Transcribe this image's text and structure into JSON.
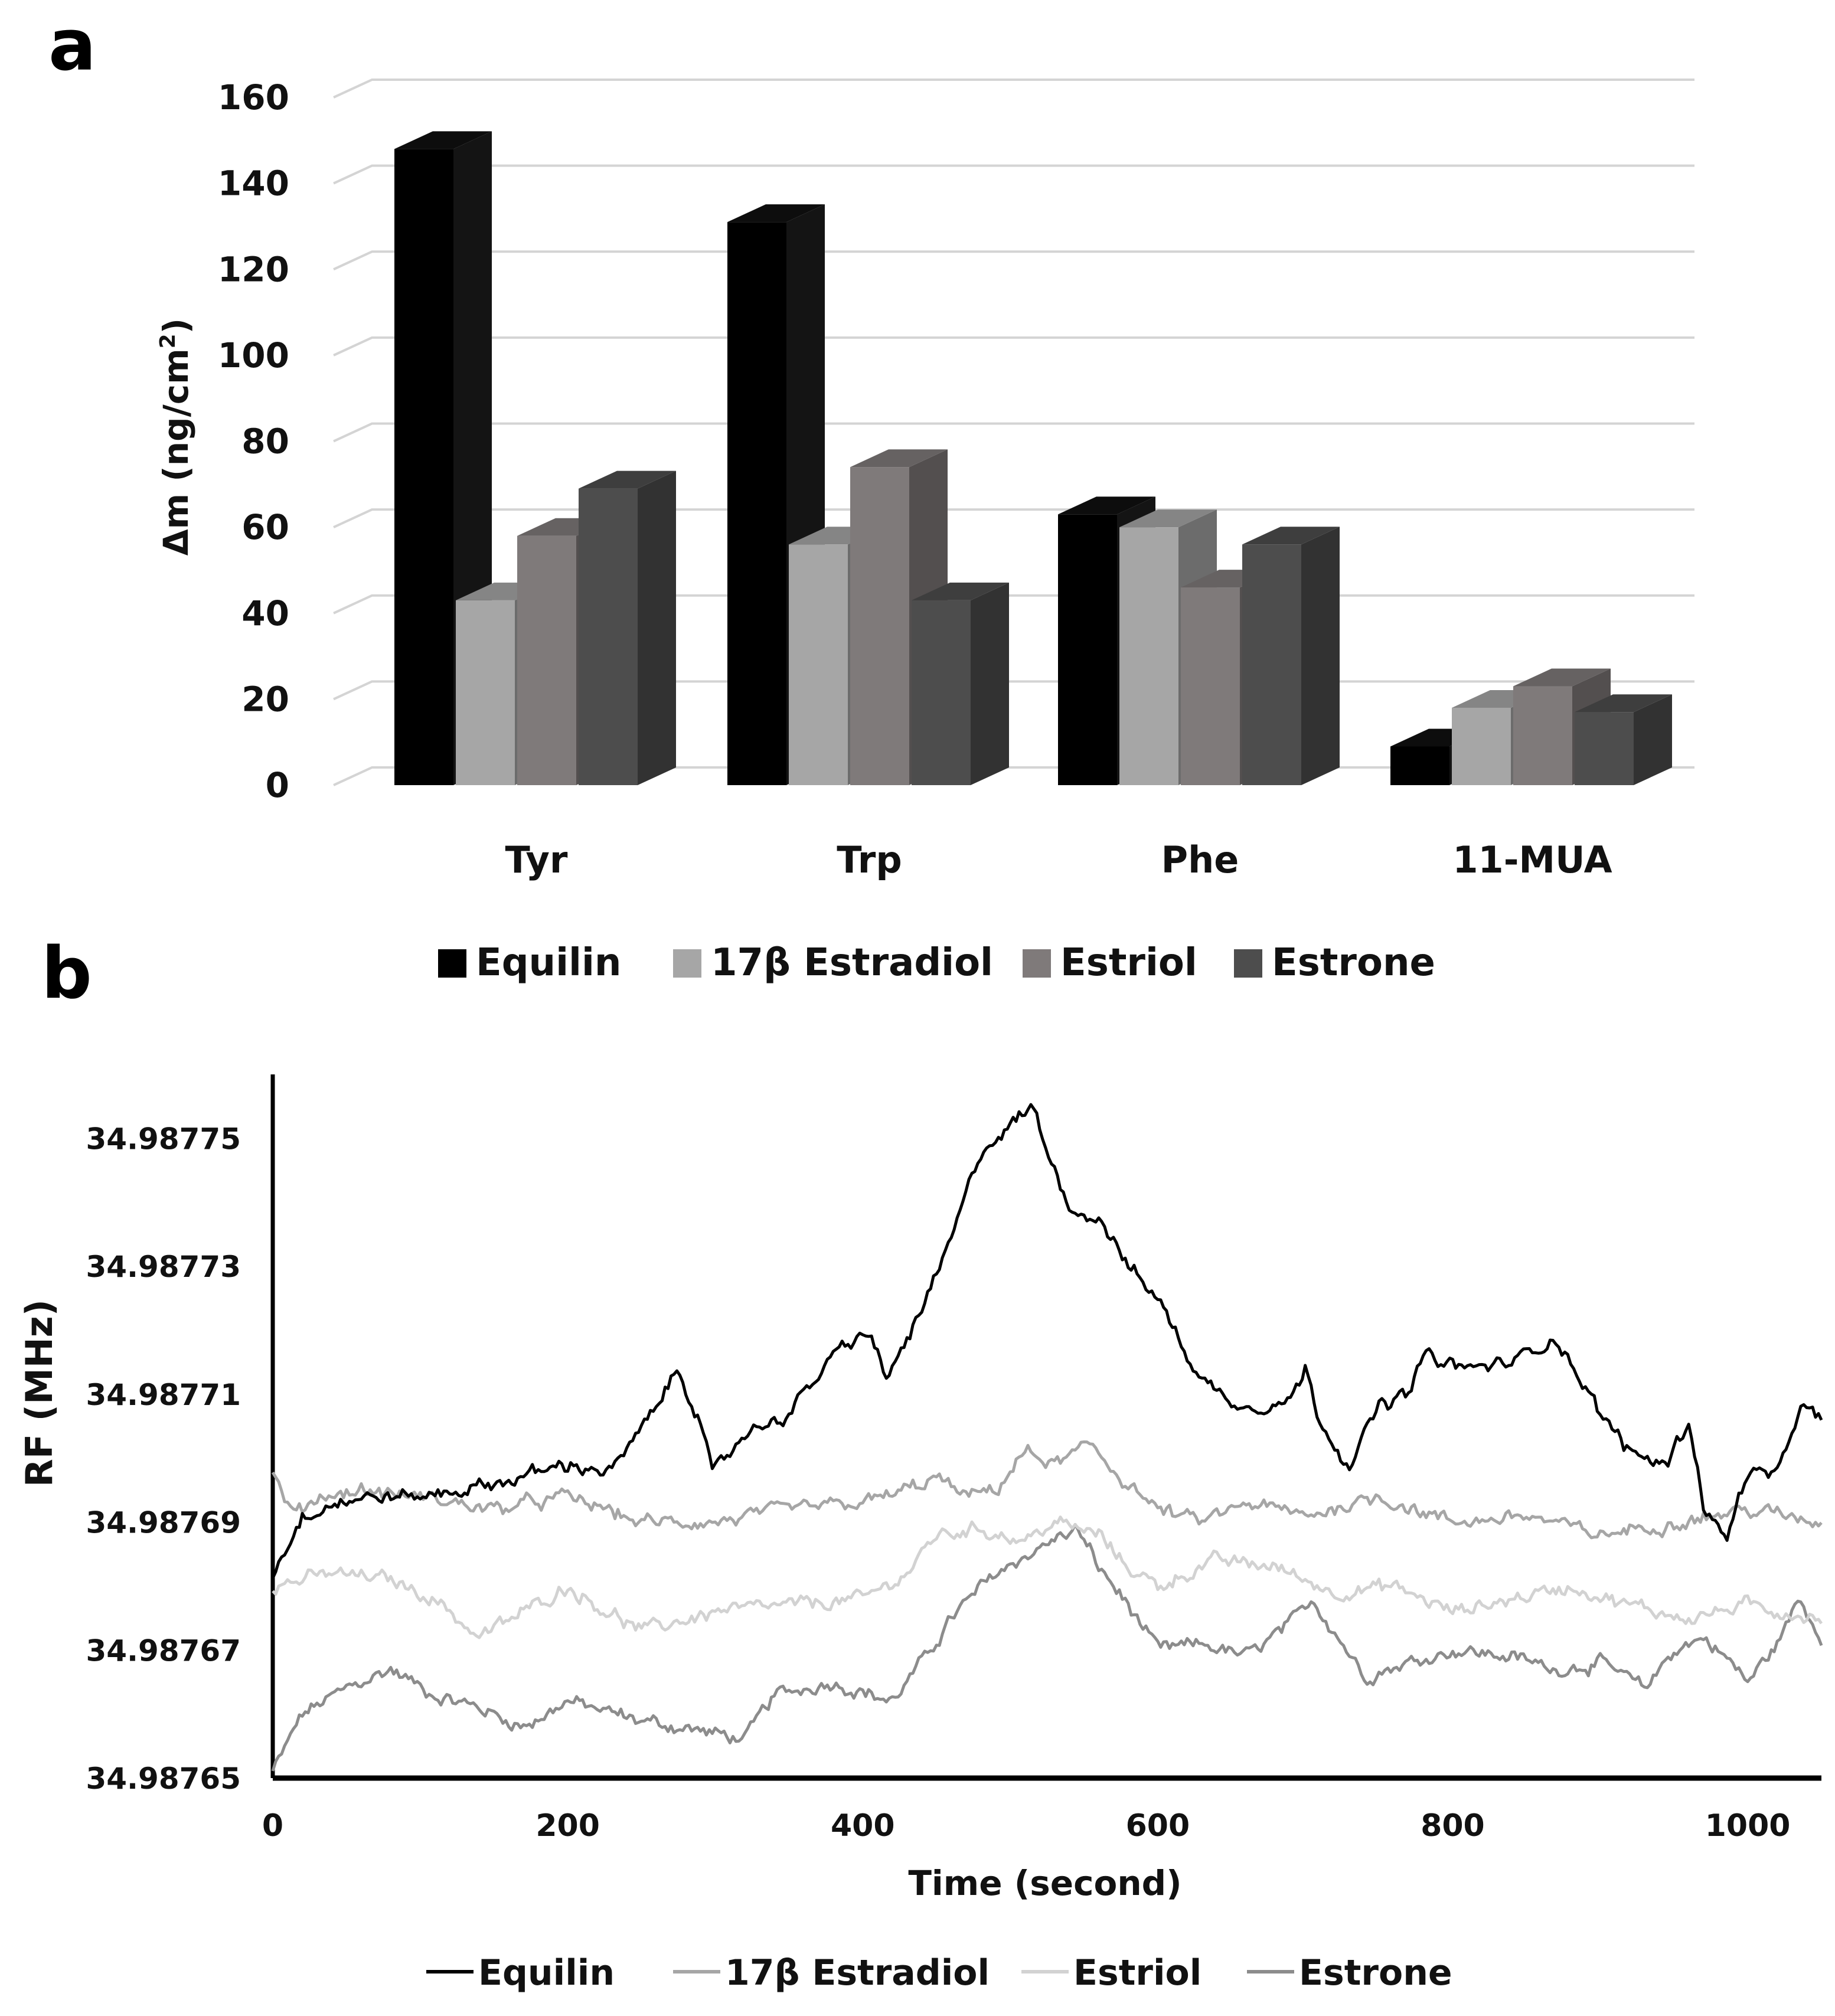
{
  "panels": {
    "a_label": "a",
    "b_label": "b"
  },
  "chart_data": [
    {
      "type": "bar",
      "panel": "a",
      "title": "",
      "categories": [
        "Tyr",
        "Trp",
        "Phe",
        "11-MUA"
      ],
      "series": [
        {
          "name": "Equilin",
          "color": "#000000",
          "values": [
            148,
            131,
            63,
            9
          ]
        },
        {
          "name": "17β Estradiol",
          "color": "#a6a6a6",
          "values": [
            43,
            56,
            60,
            18
          ]
        },
        {
          "name": "Estriol",
          "color": "#7f7a7a",
          "values": [
            58,
            74,
            46,
            23
          ]
        },
        {
          "name": "Estrone",
          "color": "#4d4d4d",
          "values": [
            69,
            43,
            56,
            17
          ]
        }
      ],
      "xlabel": "",
      "ylabel": "Δm (ng/cm",
      "ylabel_sup": "2",
      "ylabel_end": ")",
      "ylim": [
        0,
        160
      ],
      "yticks": [
        "0",
        "20",
        "40",
        "60",
        "80",
        "100",
        "120",
        "140",
        "160"
      ],
      "grid": true,
      "legend_position": "bottom"
    },
    {
      "type": "line",
      "panel": "b",
      "title": "",
      "xlabel": "Time (second)",
      "ylabel": "RF (MHz)",
      "xlim": [
        0,
        1050
      ],
      "ylim": [
        34.98765,
        34.98776
      ],
      "xticks": [
        "0",
        "200",
        "400",
        "600",
        "800",
        "1000"
      ],
      "yticks": [
        "34.98765",
        "34.98767",
        "34.98769",
        "34.98771",
        "34.98773",
        "34.98775"
      ],
      "grid": false,
      "legend_position": "bottom",
      "series": [
        {
          "name": "Equilin",
          "color": "#000000",
          "keypoints": [
            [
              0,
              34.987682
            ],
            [
              20,
              34.987691
            ],
            [
              40,
              34.987693
            ],
            [
              70,
              34.987694
            ],
            [
              100,
              34.987694
            ],
            [
              150,
              34.987696
            ],
            [
              200,
              34.987699
            ],
            [
              230,
              34.987698
            ],
            [
              255,
              34.987706
            ],
            [
              275,
              34.987714
            ],
            [
              290,
              34.987706
            ],
            [
              298,
              34.987697
            ],
            [
              320,
              34.987704
            ],
            [
              350,
              34.987707
            ],
            [
              380,
              34.987716
            ],
            [
              405,
              34.98772
            ],
            [
              415,
              34.987712
            ],
            [
              440,
              34.987723
            ],
            [
              460,
              34.987734
            ],
            [
              480,
              34.987748
            ],
            [
              500,
              34.987752
            ],
            [
              515,
              34.987755
            ],
            [
              530,
              34.987745
            ],
            [
              545,
              34.987738
            ],
            [
              560,
              34.987738
            ],
            [
              580,
              34.98773
            ],
            [
              600,
              34.987725
            ],
            [
              630,
              34.987712
            ],
            [
              660,
              34.987708
            ],
            [
              690,
              34.987709
            ],
            [
              700,
              34.987714
            ],
            [
              710,
              34.987706
            ],
            [
              730,
              34.987699
            ],
            [
              750,
              34.987708
            ],
            [
              770,
              34.98771
            ],
            [
              780,
              34.987716
            ],
            [
              810,
              34.987714
            ],
            [
              840,
              34.987715
            ],
            [
              870,
              34.987719
            ],
            [
              900,
              34.987707
            ],
            [
              920,
              34.987701
            ],
            [
              945,
              34.987699
            ],
            [
              960,
              34.987706
            ],
            [
              970,
              34.987693
            ],
            [
              985,
              34.987687
            ],
            [
              1000,
              34.987698
            ],
            [
              1020,
              34.987697
            ],
            [
              1035,
              34.987708
            ],
            [
              1050,
              34.987706
            ]
          ]
        },
        {
          "name": "17β Estradiol",
          "color": "#a6a6a6",
          "keypoints": [
            [
              0,
              34.987697
            ],
            [
              15,
              34.987691
            ],
            [
              30,
              34.987694
            ],
            [
              60,
              34.987695
            ],
            [
              100,
              34.987694
            ],
            [
              150,
              34.987692
            ],
            [
              200,
              34.987694
            ],
            [
              250,
              34.98769
            ],
            [
              300,
              34.98769
            ],
            [
              350,
              34.987692
            ],
            [
              400,
              34.987693
            ],
            [
              430,
              34.987695
            ],
            [
              450,
              34.987697
            ],
            [
              470,
              34.987694
            ],
            [
              490,
              34.987695
            ],
            [
              510,
              34.987701
            ],
            [
              530,
              34.987699
            ],
            [
              555,
              34.987702
            ],
            [
              575,
              34.987697
            ],
            [
              600,
              34.987692
            ],
            [
              630,
              34.98769
            ],
            [
              660,
              34.987693
            ],
            [
              700,
              34.987691
            ],
            [
              750,
              34.987694
            ],
            [
              800,
              34.98769
            ],
            [
              850,
              34.987691
            ],
            [
              900,
              34.987688
            ],
            [
              950,
              34.98769
            ],
            [
              1000,
              34.987692
            ],
            [
              1050,
              34.98769
            ]
          ]
        },
        {
          "name": "Estriol",
          "color": "#d2d2d2",
          "keypoints": [
            [
              0,
              34.98768
            ],
            [
              40,
              34.987682
            ],
            [
              80,
              34.987681
            ],
            [
              110,
              34.987678
            ],
            [
              140,
              34.987672
            ],
            [
              170,
              34.987676
            ],
            [
              200,
              34.98768
            ],
            [
              220,
              34.987677
            ],
            [
              250,
              34.987673
            ],
            [
              300,
              34.987676
            ],
            [
              350,
              34.987677
            ],
            [
              400,
              34.987678
            ],
            [
              430,
              34.987682
            ],
            [
              450,
              34.987688
            ],
            [
              480,
              34.987689
            ],
            [
              510,
              34.987687
            ],
            [
              530,
              34.98769
            ],
            [
              560,
              34.987688
            ],
            [
              580,
              34.987683
            ],
            [
              600,
              34.98768
            ],
            [
              640,
              34.987684
            ],
            [
              680,
              34.987683
            ],
            [
              720,
              34.987679
            ],
            [
              760,
              34.98768
            ],
            [
              800,
              34.987676
            ],
            [
              840,
              34.987678
            ],
            [
              880,
              34.98768
            ],
            [
              920,
              34.987677
            ],
            [
              960,
              34.987675
            ],
            [
              1000,
              34.987677
            ],
            [
              1050,
              34.987675
            ]
          ]
        },
        {
          "name": "Estrone",
          "color": "#8c8c8c",
          "keypoints": [
            [
              0,
              34.987651
            ],
            [
              20,
              34.98766
            ],
            [
              50,
              34.987664
            ],
            [
              80,
              34.987667
            ],
            [
              110,
              34.987663
            ],
            [
              140,
              34.987661
            ],
            [
              170,
              34.987658
            ],
            [
              200,
              34.987662
            ],
            [
              250,
              34.987659
            ],
            [
              300,
              34.987657
            ],
            [
              320,
              34.987656
            ],
            [
              340,
              34.987663
            ],
            [
              380,
              34.987665
            ],
            [
              420,
              34.987662
            ],
            [
              440,
              34.987668
            ],
            [
              460,
              34.987675
            ],
            [
              490,
              34.987682
            ],
            [
              520,
              34.987686
            ],
            [
              545,
              34.987689
            ],
            [
              560,
              34.987683
            ],
            [
              580,
              34.987677
            ],
            [
              600,
              34.98767
            ],
            [
              630,
              34.987671
            ],
            [
              660,
              34.987669
            ],
            [
              690,
              34.987674
            ],
            [
              705,
              34.987678
            ],
            [
              720,
              34.987673
            ],
            [
              740,
              34.987666
            ],
            [
              770,
              34.987668
            ],
            [
              800,
              34.98767
            ],
            [
              840,
              34.987669
            ],
            [
              870,
              34.987667
            ],
            [
              900,
              34.987668
            ],
            [
              930,
              34.987664
            ],
            [
              950,
              34.98767
            ],
            [
              970,
              34.987672
            ],
            [
              985,
              34.987669
            ],
            [
              1000,
              34.987665
            ],
            [
              1020,
              34.987671
            ],
            [
              1035,
              34.987678
            ],
            [
              1050,
              34.987672
            ]
          ]
        }
      ]
    }
  ]
}
